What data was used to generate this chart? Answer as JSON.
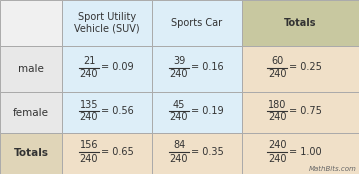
{
  "col_headers": [
    "Sport Utility\nVehicle (SUV)",
    "Sports Car",
    "Totals"
  ],
  "row_headers": [
    "male",
    "female",
    "Totals"
  ],
  "cell_data": [
    [
      {
        "num": "21",
        "den": "240",
        "eq": "= 0.09"
      },
      {
        "num": "39",
        "den": "240",
        "eq": "= 0.16"
      },
      {
        "num": "60",
        "den": "240",
        "eq": "= 0.25"
      }
    ],
    [
      {
        "num": "135",
        "den": "240",
        "eq": "= 0.56"
      },
      {
        "num": "45",
        "den": "240",
        "eq": "= 0.19"
      },
      {
        "num": "180",
        "den": "240",
        "eq": "= 0.75"
      }
    ],
    [
      {
        "num": "156",
        "den": "240",
        "eq": "= 0.65"
      },
      {
        "num": "84",
        "den": "240",
        "eq": "= 0.35"
      },
      {
        "num": "240",
        "den": "240",
        "eq": "= 1.00"
      }
    ]
  ],
  "header_row_bg": [
    "#f0f0f0",
    "#ddeef8",
    "#ddeef8",
    "#c8c8a0"
  ],
  "row_header_colors": [
    "#e8e8e8",
    "#e8e8e8",
    "#e0d5b8"
  ],
  "cell_colors": [
    [
      "#ddeef8",
      "#ddeef8",
      "#f0e0c8"
    ],
    [
      "#ddeef8",
      "#ddeef8",
      "#f0e0c8"
    ],
    [
      "#f0e0c8",
      "#f0e0c8",
      "#f0e0c8"
    ]
  ],
  "col_header_bold": [
    false,
    false,
    true
  ],
  "row_header_bold": [
    false,
    false,
    true
  ],
  "watermark": "MathBits.com",
  "figsize": [
    3.59,
    1.74
  ],
  "dpi": 100
}
